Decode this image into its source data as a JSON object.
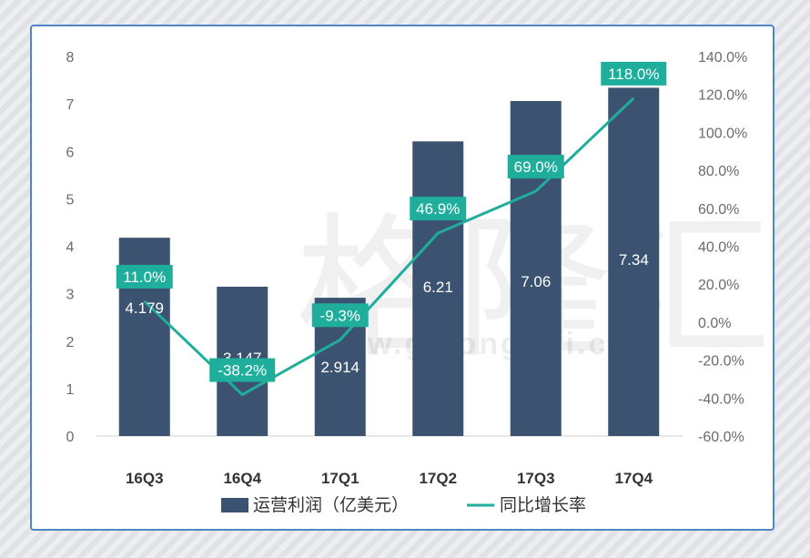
{
  "watermark": {
    "text": "格隆汇",
    "url": "www.gelonghui.com"
  },
  "chart_data": {
    "type": "bar",
    "categories": [
      "16Q3",
      "16Q4",
      "17Q1",
      "17Q2",
      "17Q3",
      "17Q4"
    ],
    "series": [
      {
        "name": "运营利润（亿美元）",
        "type": "bar",
        "axis": "left",
        "values": [
          4.179,
          3.147,
          2.914,
          6.21,
          7.06,
          7.34
        ],
        "labels": [
          "4.179",
          "3.147",
          "2.914",
          "6.21",
          "7.06",
          "7.34"
        ],
        "color": "#3b5370"
      },
      {
        "name": "同比增长率",
        "type": "line",
        "axis": "right",
        "values": [
          11.0,
          -38.2,
          -9.3,
          46.9,
          69.0,
          118.0
        ],
        "labels": [
          "11.0%",
          "-38.2%",
          "-9.3%",
          "46.9%",
          "69.0%",
          "118.0%"
        ],
        "color": "#1fae9c"
      }
    ],
    "y_left": {
      "min": 0,
      "max": 8,
      "ticks": [
        "0",
        "1",
        "2",
        "3",
        "4",
        "5",
        "6",
        "7",
        "8"
      ]
    },
    "y_right": {
      "min": -60,
      "max": 140,
      "ticks": [
        "-60.0%",
        "-40.0%",
        "-20.0%",
        "0.0%",
        "20.0%",
        "40.0%",
        "60.0%",
        "80.0%",
        "100.0%",
        "120.0%",
        "140.0%"
      ]
    },
    "grid": false,
    "legend_position": "bottom"
  }
}
